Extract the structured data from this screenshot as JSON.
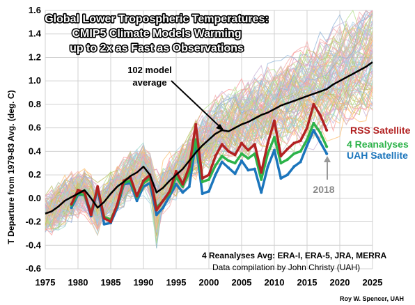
{
  "chart_data": {
    "type": "line",
    "title_lines": [
      "Global Lower Tropospheric Temperatures:",
      "CMIP5 Climate Models Warming",
      "up to 2x as Fast as Observations"
    ],
    "ylabel": "T Departure from 1979-83 Avg. (deg. C)",
    "xlim": [
      1975,
      2025
    ],
    "ylim": [
      -0.6,
      1.6
    ],
    "x_ticks": [
      1975,
      1980,
      1985,
      1990,
      1995,
      2000,
      2005,
      2010,
      2015,
      2020,
      2025
    ],
    "y_ticks": [
      -0.6,
      -0.4,
      -0.2,
      0.0,
      0.2,
      0.4,
      0.6,
      0.8,
      1.0,
      1.2,
      1.4,
      1.6
    ],
    "grid": true,
    "series": [
      {
        "name": "102 model average",
        "color": "#000000",
        "x": [
          1975,
          1976,
          1977,
          1978,
          1979,
          1980,
          1981,
          1982,
          1983,
          1984,
          1985,
          1986,
          1987,
          1988,
          1989,
          1990,
          1991,
          1992,
          1993,
          1994,
          1995,
          1996,
          1997,
          1998,
          1999,
          2000,
          2001,
          2002,
          2003,
          2004,
          2005,
          2006,
          2007,
          2008,
          2009,
          2010,
          2011,
          2012,
          2013,
          2014,
          2015,
          2016,
          2017,
          2018,
          2019,
          2020,
          2021,
          2022,
          2023,
          2024,
          2025
        ],
        "y": [
          -0.13,
          -0.11,
          -0.07,
          -0.02,
          0.01,
          0.04,
          0.07,
          0.0,
          -0.08,
          -0.03,
          0.04,
          0.1,
          0.14,
          0.19,
          0.22,
          0.27,
          0.2,
          0.05,
          0.09,
          0.15,
          0.2,
          0.25,
          0.32,
          0.39,
          0.45,
          0.5,
          0.55,
          0.58,
          0.57,
          0.6,
          0.63,
          0.65,
          0.68,
          0.71,
          0.73,
          0.76,
          0.79,
          0.81,
          0.83,
          0.85,
          0.87,
          0.89,
          0.91,
          0.93,
          0.97,
          1.0,
          1.03,
          1.06,
          1.09,
          1.12,
          1.16
        ]
      },
      {
        "name": "RSS Satellite",
        "color": "#b22222",
        "x": [
          1979,
          1980,
          1981,
          1982,
          1983,
          1984,
          1985,
          1986,
          1987,
          1988,
          1989,
          1990,
          1991,
          1992,
          1993,
          1994,
          1995,
          1996,
          1997,
          1998,
          1999,
          2000,
          2001,
          2002,
          2003,
          2004,
          2005,
          2006,
          2007,
          2008,
          2009,
          2010,
          2011,
          2012,
          2013,
          2014,
          2015,
          2016,
          2017,
          2018
        ],
        "y": [
          -0.05,
          0.07,
          0.05,
          -0.14,
          0.1,
          -0.17,
          -0.2,
          -0.05,
          0.15,
          0.18,
          0.02,
          0.15,
          0.2,
          -0.1,
          -0.02,
          0.06,
          0.23,
          0.12,
          0.27,
          0.63,
          0.17,
          0.2,
          0.36,
          0.46,
          0.4,
          0.37,
          0.47,
          0.41,
          0.46,
          0.22,
          0.47,
          0.66,
          0.36,
          0.42,
          0.47,
          0.49,
          0.6,
          0.8,
          0.71,
          0.58
        ]
      },
      {
        "name": "4 Reanalyses",
        "color": "#2db34a",
        "x": [
          1979,
          1980,
          1981,
          1982,
          1983,
          1984,
          1985,
          1986,
          1987,
          1988,
          1989,
          1990,
          1991,
          1992,
          1993,
          1994,
          1995,
          1996,
          1997,
          1998,
          1999,
          2000,
          2001,
          2002,
          2003,
          2004,
          2005,
          2006,
          2007,
          2008,
          2009,
          2010,
          2011,
          2012,
          2013,
          2014,
          2015,
          2016,
          2017,
          2018
        ],
        "y": [
          -0.06,
          0.04,
          0.03,
          -0.12,
          0.09,
          -0.16,
          -0.18,
          -0.06,
          0.13,
          0.15,
          0.01,
          0.13,
          0.17,
          -0.08,
          -0.02,
          0.04,
          0.18,
          0.1,
          0.22,
          0.5,
          0.14,
          0.16,
          0.28,
          0.36,
          0.32,
          0.3,
          0.38,
          0.34,
          0.38,
          0.16,
          0.38,
          0.52,
          0.3,
          0.33,
          0.38,
          0.4,
          0.5,
          0.64,
          0.56,
          0.44
        ]
      },
      {
        "name": "UAH Satellite",
        "color": "#1b75bc",
        "x": [
          1979,
          1980,
          1981,
          1982,
          1983,
          1984,
          1985,
          1986,
          1987,
          1988,
          1989,
          1990,
          1991,
          1992,
          1993,
          1994,
          1995,
          1996,
          1997,
          1998,
          1999,
          2000,
          2001,
          2002,
          2003,
          2004,
          2005,
          2006,
          2007,
          2008,
          2009,
          2010,
          2011,
          2012,
          2013,
          2014,
          2015,
          2016,
          2017,
          2018
        ],
        "y": [
          -0.08,
          0.03,
          0.03,
          -0.15,
          0.08,
          -0.22,
          -0.21,
          -0.08,
          0.12,
          0.13,
          -0.02,
          0.1,
          0.13,
          -0.14,
          -0.08,
          0.02,
          0.12,
          0.05,
          0.1,
          0.48,
          0.04,
          0.06,
          0.2,
          0.31,
          0.26,
          0.21,
          0.32,
          0.24,
          0.25,
          0.05,
          0.27,
          0.41,
          0.17,
          0.2,
          0.27,
          0.31,
          0.45,
          0.58,
          0.48,
          0.38
        ]
      }
    ],
    "annotations": {
      "model_average": [
        "102 model",
        "average"
      ],
      "year_label": "2018",
      "rss_label": "RSS Satellite",
      "reanalyses_label": "4 Reanalyses",
      "uah_label": "UAH Satellite",
      "reanalyses_note": "4 Reanalyses Avg: ERA-I, ERA-5, JRA, MERRA",
      "compilation_note": "Data compilation by John Christy (UAH)",
      "credit": "Roy W. Spencer, UAH"
    }
  },
  "colors": {
    "model_runs_palette": [
      "#f4a9a8",
      "#a6cee3",
      "#fdbf6f",
      "#b2df8a",
      "#cab2d6",
      "#c8c8c8",
      "#fb9a99",
      "#8db3d8",
      "#e6c38a",
      "#9ed8c8",
      "#d9a3c9",
      "#bcbd5e"
    ]
  }
}
